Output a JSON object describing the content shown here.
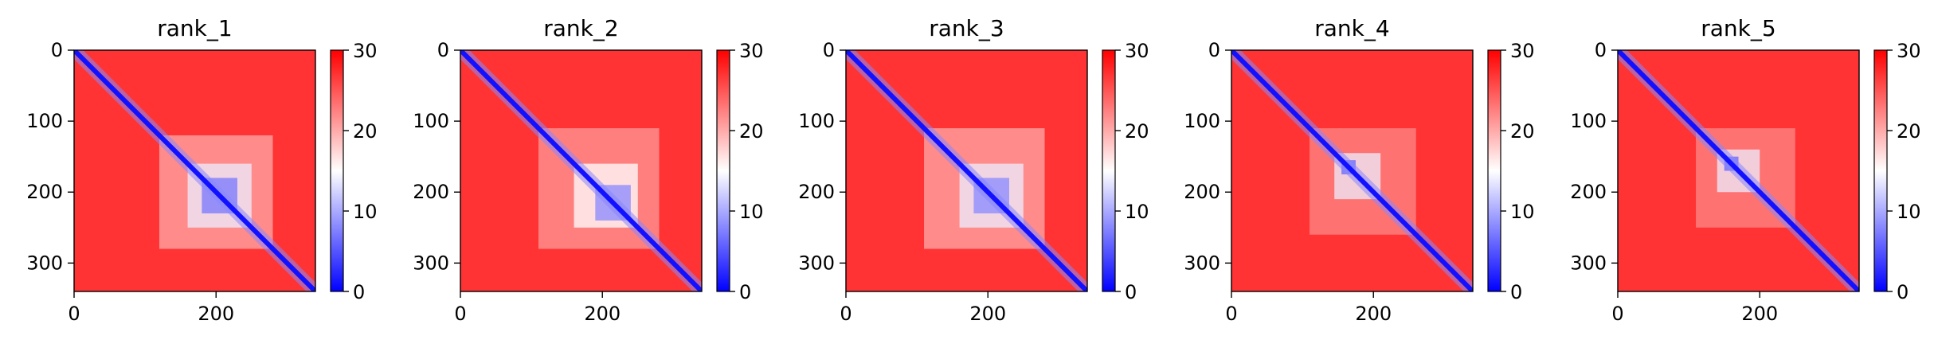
{
  "chart_data": [
    {
      "type": "heatmap",
      "title": "rank_1",
      "xlim": [
        0,
        340
      ],
      "ylim": [
        340,
        0
      ],
      "xticks": [
        0,
        200
      ],
      "yticks": [
        0,
        100,
        200,
        300
      ],
      "colorbar": {
        "range": [
          0,
          30
        ],
        "ticks": [
          0,
          10,
          20,
          30
        ],
        "colormap": "bwr"
      },
      "background_value": 27,
      "diagonal_value": 1,
      "features": [
        {
          "x0": 120,
          "x1": 280,
          "y0": 120,
          "y1": 280,
          "value": 20
        },
        {
          "x0": 160,
          "x1": 250,
          "y0": 160,
          "y1": 250,
          "value": 14
        },
        {
          "x0": 180,
          "x1": 230,
          "y0": 180,
          "y1": 230,
          "value": 7
        }
      ]
    },
    {
      "type": "heatmap",
      "title": "rank_2",
      "xlim": [
        0,
        340
      ],
      "ylim": [
        340,
        0
      ],
      "xticks": [
        0,
        200
      ],
      "yticks": [
        0,
        100,
        200,
        300
      ],
      "colorbar": {
        "range": [
          0,
          30
        ],
        "ticks": [
          0,
          10,
          20,
          30
        ],
        "colormap": "bwr"
      },
      "background_value": 27,
      "diagonal_value": 1,
      "features": [
        {
          "x0": 110,
          "x1": 280,
          "y0": 110,
          "y1": 280,
          "value": 21
        },
        {
          "x0": 160,
          "x1": 250,
          "y0": 160,
          "y1": 250,
          "value": 15
        },
        {
          "x0": 190,
          "x1": 240,
          "y0": 190,
          "y1": 240,
          "value": 8
        }
      ]
    },
    {
      "type": "heatmap",
      "title": "rank_3",
      "xlim": [
        0,
        340
      ],
      "ylim": [
        340,
        0
      ],
      "xticks": [
        0,
        200
      ],
      "yticks": [
        0,
        100,
        200,
        300
      ],
      "colorbar": {
        "range": [
          0,
          30
        ],
        "ticks": [
          0,
          10,
          20,
          30
        ],
        "colormap": "bwr"
      },
      "background_value": 27,
      "diagonal_value": 1,
      "features": [
        {
          "x0": 110,
          "x1": 280,
          "y0": 110,
          "y1": 280,
          "value": 20
        },
        {
          "x0": 160,
          "x1": 250,
          "y0": 160,
          "y1": 250,
          "value": 14
        },
        {
          "x0": 180,
          "x1": 230,
          "y0": 180,
          "y1": 230,
          "value": 8
        }
      ]
    },
    {
      "type": "heatmap",
      "title": "rank_4",
      "xlim": [
        0,
        340
      ],
      "ylim": [
        340,
        0
      ],
      "xticks": [
        0,
        200
      ],
      "yticks": [
        0,
        100,
        200,
        300
      ],
      "colorbar": {
        "range": [
          0,
          30
        ],
        "ticks": [
          0,
          10,
          20,
          30
        ],
        "colormap": "bwr"
      },
      "background_value": 27,
      "diagonal_value": 1,
      "features": [
        {
          "x0": 110,
          "x1": 260,
          "y0": 110,
          "y1": 260,
          "value": 22
        },
        {
          "x0": 145,
          "x1": 210,
          "y0": 145,
          "y1": 210,
          "value": 14
        },
        {
          "x0": 155,
          "x1": 175,
          "y0": 155,
          "y1": 175,
          "value": 6
        }
      ]
    },
    {
      "type": "heatmap",
      "title": "rank_5",
      "xlim": [
        0,
        340
      ],
      "ylim": [
        340,
        0
      ],
      "xticks": [
        0,
        200
      ],
      "yticks": [
        0,
        100,
        200,
        300
      ],
      "colorbar": {
        "range": [
          0,
          30
        ],
        "ticks": [
          0,
          10,
          20,
          30
        ],
        "colormap": "bwr"
      },
      "background_value": 27,
      "diagonal_value": 1,
      "features": [
        {
          "x0": 110,
          "x1": 250,
          "y0": 110,
          "y1": 250,
          "value": 22
        },
        {
          "x0": 140,
          "x1": 200,
          "y0": 140,
          "y1": 200,
          "value": 14
        },
        {
          "x0": 150,
          "x1": 170,
          "y0": 150,
          "y1": 170,
          "value": 6
        }
      ]
    }
  ]
}
